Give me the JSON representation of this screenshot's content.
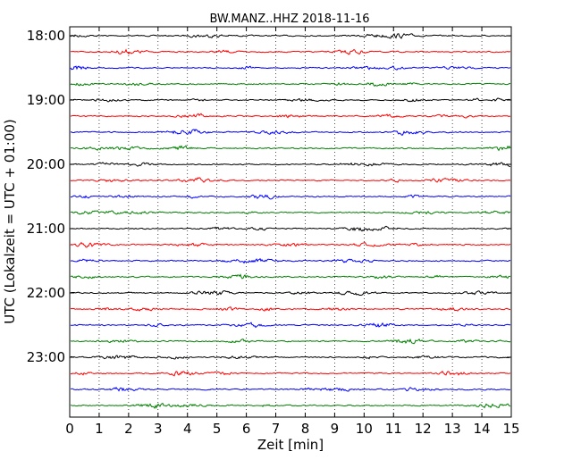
{
  "chart_data": {
    "type": "line",
    "title": "BW.MANZ..HHZ 2018-11-16",
    "xlabel": "Zeit  [min]",
    "ylabel": "UTC (Lokalzeit = UTC + 01:00)",
    "xlim": [
      0,
      15
    ],
    "x_ticks": [
      "0",
      "1",
      "2",
      "3",
      "4",
      "5",
      "6",
      "7",
      "8",
      "9",
      "10",
      "11",
      "12",
      "13",
      "14",
      "15"
    ],
    "y_tick_labels": [
      "18:00",
      "19:00",
      "20:00",
      "21:00",
      "22:00",
      "23:00"
    ],
    "grid": "vertical dotted at each minute",
    "trace_colors": [
      "#000000",
      "#ff0000",
      "#0000ff",
      "#008000"
    ],
    "series": [
      {
        "start": "18:00"
      },
      {
        "start": "18:15"
      },
      {
        "start": "18:30"
      },
      {
        "start": "18:45"
      },
      {
        "start": "19:00"
      },
      {
        "start": "19:15"
      },
      {
        "start": "19:30"
      },
      {
        "start": "19:45"
      },
      {
        "start": "20:00"
      },
      {
        "start": "20:15"
      },
      {
        "start": "20:30"
      },
      {
        "start": "20:45"
      },
      {
        "start": "21:00"
      },
      {
        "start": "21:15"
      },
      {
        "start": "21:30"
      },
      {
        "start": "21:45"
      },
      {
        "start": "22:00"
      },
      {
        "start": "22:15"
      },
      {
        "start": "22:30"
      },
      {
        "start": "22:45"
      },
      {
        "start": "23:00"
      },
      {
        "start": "23:15"
      },
      {
        "start": "23:30"
      },
      {
        "start": "23:45"
      }
    ]
  }
}
